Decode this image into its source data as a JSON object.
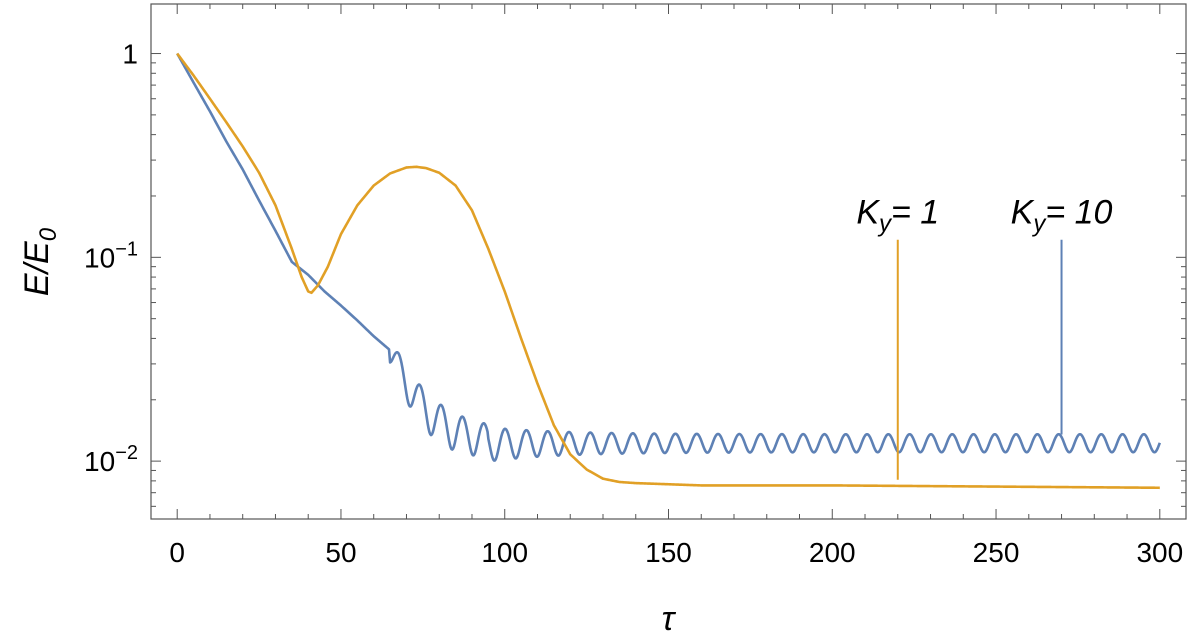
{
  "chart_data": {
    "type": "line",
    "title": "",
    "xlabel": "τ",
    "ylabel": {
      "main": "E/E",
      "sub": "0"
    },
    "xlim": [
      -8,
      308
    ],
    "ylog": true,
    "ylim": [
      0.0052,
      1.75
    ],
    "x_ticks": [
      0,
      50,
      100,
      150,
      200,
      250,
      300
    ],
    "y_ticks": [
      {
        "value": 1,
        "base": "1",
        "exp": ""
      },
      {
        "value": 0.1,
        "base": "10",
        "exp": "−1"
      },
      {
        "value": 0.01,
        "base": "10",
        "exp": "−2"
      }
    ],
    "grid": false,
    "colors": {
      "ky1": "#E1A026",
      "ky10": "#5E81B5"
    },
    "series": [
      {
        "key": "ky10",
        "points": [
          [
            0,
            1.0
          ],
          [
            5,
            0.72
          ],
          [
            10,
            0.52
          ],
          [
            15,
            0.37
          ],
          [
            20,
            0.27
          ],
          [
            25,
            0.19
          ],
          [
            30,
            0.135
          ],
          [
            35,
            0.095
          ],
          [
            40,
            0.082
          ],
          [
            45,
            0.068
          ],
          [
            50,
            0.058
          ],
          [
            55,
            0.049
          ],
          [
            60,
            0.041
          ],
          [
            65,
            0.035
          ]
        ],
        "tail": {
          "x_start": 65,
          "x_end": 300,
          "base": 0.0123,
          "amp0": 0.011,
          "amp_min": 0.0025,
          "decay": 22,
          "period": 6.5,
          "phase_x": 66
        }
      },
      {
        "key": "ky1",
        "points": [
          [
            0,
            1.0
          ],
          [
            5,
            0.78
          ],
          [
            10,
            0.6
          ],
          [
            15,
            0.46
          ],
          [
            20,
            0.35
          ],
          [
            25,
            0.26
          ],
          [
            30,
            0.18
          ],
          [
            35,
            0.11
          ],
          [
            38,
            0.08
          ],
          [
            40,
            0.068
          ],
          [
            41,
            0.067
          ],
          [
            43,
            0.073
          ],
          [
            46,
            0.09
          ],
          [
            50,
            0.13
          ],
          [
            55,
            0.18
          ],
          [
            60,
            0.225
          ],
          [
            65,
            0.258
          ],
          [
            70,
            0.276
          ],
          [
            73,
            0.278
          ],
          [
            76,
            0.274
          ],
          [
            80,
            0.26
          ],
          [
            85,
            0.225
          ],
          [
            90,
            0.17
          ],
          [
            95,
            0.11
          ],
          [
            100,
            0.068
          ],
          [
            105,
            0.04
          ],
          [
            110,
            0.024
          ],
          [
            115,
            0.015
          ],
          [
            120,
            0.0108
          ],
          [
            125,
            0.0091
          ],
          [
            130,
            0.0082
          ],
          [
            135,
            0.0079
          ],
          [
            140,
            0.0078
          ],
          [
            150,
            0.0077
          ],
          [
            160,
            0.0076
          ],
          [
            200,
            0.0076
          ],
          [
            250,
            0.0075
          ],
          [
            300,
            0.0074
          ]
        ]
      }
    ],
    "annotations": [
      {
        "key": "ky1",
        "label_main": "K",
        "label_sub": "y",
        "label_rest": "= 1",
        "x": 220,
        "y_top": 0.122,
        "y_bottom": 0.0081
      },
      {
        "key": "ky10",
        "label_main": "K",
        "label_sub": "y",
        "label_rest": "= 10",
        "x": 270,
        "y_top": 0.122,
        "y_bottom": 0.0135
      }
    ]
  }
}
